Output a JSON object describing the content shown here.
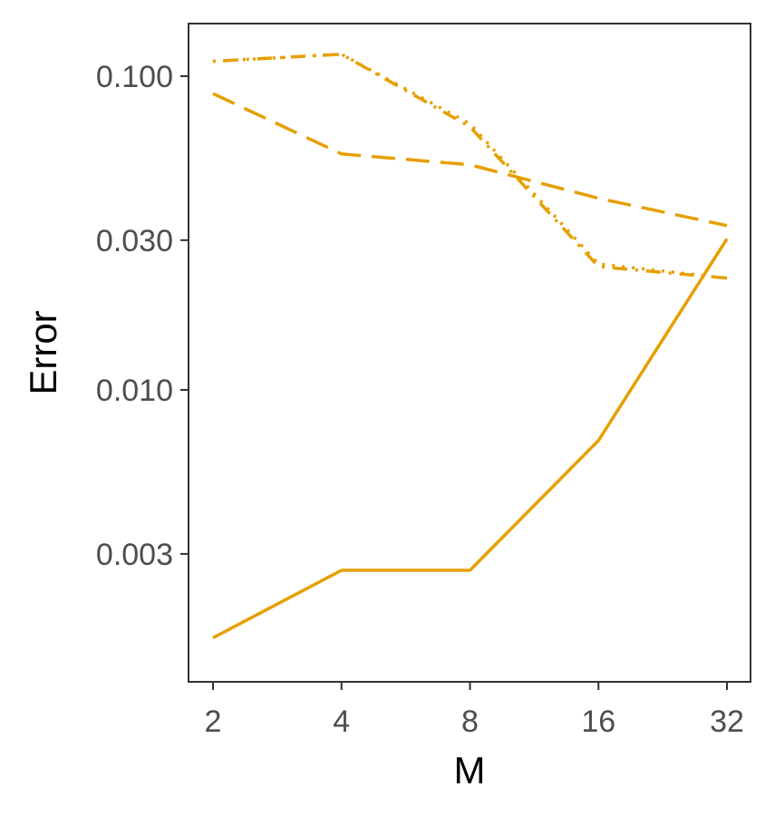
{
  "chart_data": {
    "type": "line",
    "title": "",
    "xlabel": "M",
    "ylabel": "Error",
    "x_scale": "log2",
    "y_scale": "log10",
    "x": [
      2,
      4,
      8,
      16,
      32
    ],
    "x_tick_labels": [
      "2",
      "4",
      "8",
      "16",
      "32"
    ],
    "y_ticks": [
      0.003,
      0.01,
      0.03,
      0.1
    ],
    "y_tick_labels": [
      "0.003",
      "0.010",
      "0.030",
      "0.100"
    ],
    "xlim": [
      1.8,
      35
    ],
    "ylim": [
      0.0013,
      0.14
    ],
    "grid": false,
    "legend": "none",
    "line_color": "#E69F00",
    "series": [
      {
        "line_style": "solid",
        "values": [
          0.00162,
          0.00266,
          0.00266,
          0.0069,
          0.0303
        ]
      },
      {
        "line_style": "dashed",
        "values": [
          0.088,
          0.0565,
          0.0522,
          0.0408,
          0.0334
        ]
      },
      {
        "line_style": "dotdash",
        "values": [
          0.1115,
          0.1175,
          0.069,
          0.0247,
          0.0227
        ]
      },
      {
        "line_style": "dotted",
        "values": [
          0.1115,
          0.1175,
          0.0705,
          0.0252,
          0.0227
        ]
      }
    ]
  }
}
